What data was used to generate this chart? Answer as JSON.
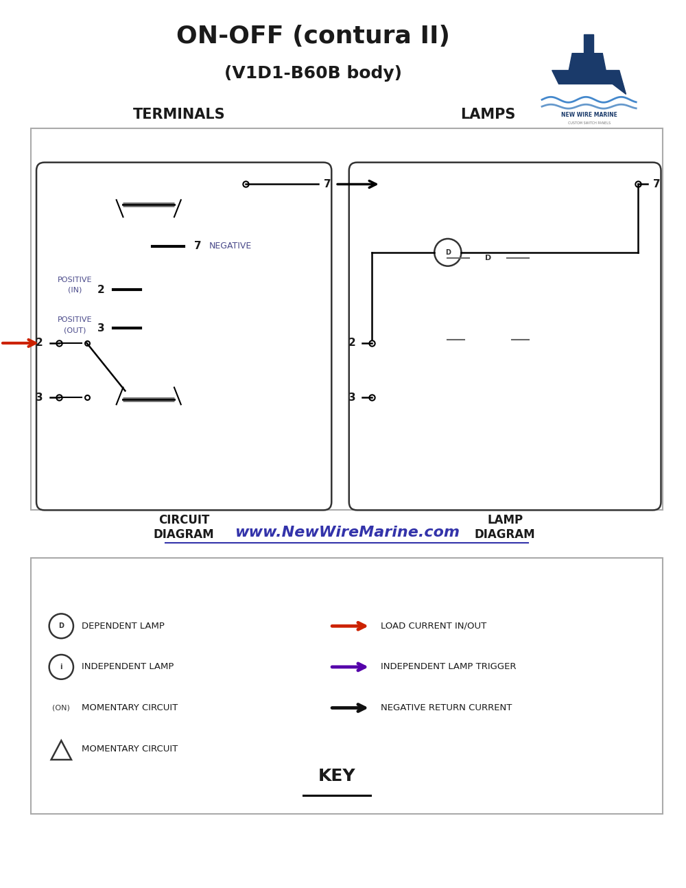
{
  "title": "ON-OFF (contura II)",
  "subtitle": "(V1D1-B60B body)",
  "website": "www.NewWireMarine.com",
  "bg_color": "#ffffff",
  "border_color": "#333333",
  "label_color": "#4a4a8a",
  "text_color": "#1a1a1a",
  "arrow_red": "#cc2200",
  "arrow_purple": "#5500aa",
  "arrow_black": "#111111",
  "terminal_label": "TERMINALS",
  "lamp_label": "LAMPS",
  "circuit_label": "CIRCUIT\nDIAGRAM",
  "lamp_diagram_label": "LAMP\nDIAGRAM",
  "key_label": "KEY",
  "negative_label": "NEGATIVE",
  "key_items_left": [
    [
      "D",
      "DEPENDENT LAMP",
      3.8
    ],
    [
      "I",
      "INDEPENDENT LAMP",
      3.2
    ],
    [
      "ON",
      "MOMENTARY CIRCUIT",
      2.6
    ],
    [
      "TRI",
      "MOMENTARY CIRCUIT",
      2.0
    ]
  ],
  "key_items_right": [
    [
      "#cc2200",
      "LOAD CURRENT IN/OUT",
      3.8
    ],
    [
      "#5500aa",
      "INDEPENDENT LAMP TRIGGER",
      3.2
    ],
    [
      "#111111",
      "NEGATIVE RETURN CURRENT",
      2.6
    ]
  ]
}
